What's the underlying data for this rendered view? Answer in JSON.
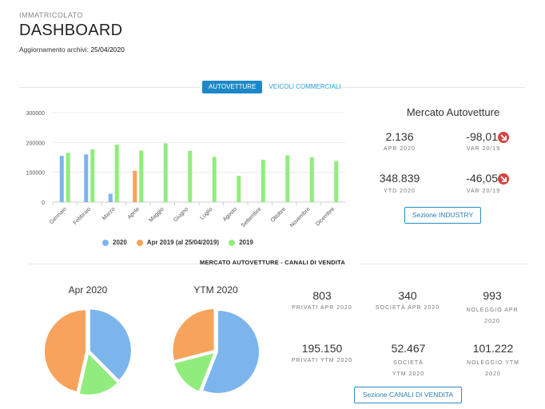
{
  "header": {
    "supertitle": "IMMATRICOLATO",
    "title": "DASHBOARD",
    "update_label": "Aggiornamento archivi:",
    "update_date": "25/04/2020"
  },
  "tabs": [
    {
      "label": "AUTOVETTURE",
      "active": true
    },
    {
      "label": "VEICOLI COMMERCIALI",
      "active": false
    }
  ],
  "chart_data": [
    {
      "type": "bar",
      "categories": [
        "Gennaio",
        "Febbraio",
        "Marzo",
        "Aprile",
        "Maggio",
        "Giugno",
        "Luglio",
        "Agosto",
        "Settembre",
        "Ottobre",
        "Novembre",
        "Dicembre"
      ],
      "series": [
        {
          "name": "2020",
          "color": "#7cb5ec",
          "values": [
            155000,
            160000,
            28000,
            null,
            null,
            null,
            null,
            null,
            null,
            null,
            null,
            null
          ]
        },
        {
          "name": "Apr 2019 (al 25/04/2019)",
          "color": "#f7a35c",
          "values": [
            null,
            null,
            null,
            105000,
            null,
            null,
            null,
            null,
            null,
            null,
            null,
            null
          ]
        },
        {
          "name": "2019",
          "color": "#90ed7d",
          "values": [
            165000,
            177000,
            193000,
            173000,
            197000,
            172000,
            152000,
            88000,
            142000,
            157000,
            150000,
            138000
          ]
        }
      ],
      "yticks": [
        "0",
        "100000",
        "200000",
        "300000"
      ],
      "ylim": [
        0,
        300000
      ],
      "grid": true,
      "legend": "bottom"
    },
    {
      "type": "pie",
      "title": "Apr 2020",
      "series": [
        {
          "name": "Privati Apr 2020",
          "value": 803,
          "color": "#7cb5ec"
        },
        {
          "name": "Società Apr 2020",
          "value": 340,
          "color": "#90ed7d"
        },
        {
          "name": "Noleggio Apr 2020",
          "value": 993,
          "color": "#f7a35c"
        }
      ]
    },
    {
      "type": "pie",
      "title": "YTM 2020",
      "series": [
        {
          "name": "Privati YTM 2020",
          "value": 195150,
          "color": "#7cb5ec"
        },
        {
          "name": "Società YTM 2020",
          "value": 52467,
          "color": "#90ed7d"
        },
        {
          "name": "Noleggio YTM 2020",
          "value": 101222,
          "color": "#f7a35c"
        }
      ]
    }
  ],
  "mercato": {
    "title": "Mercato Autovetture",
    "apr_value": "2.136",
    "apr_label": "APR 2020",
    "var_apr_value": "-98,01",
    "var_apr_label": "VAR 20/19",
    "ytd_value": "348.839",
    "ytd_label": "YTD 2020",
    "var_ytd_value": "-46,05",
    "var_ytd_label": "VAR 20/19",
    "button": "Sezione INDUSTRY",
    "arrow_color": "#d64541"
  },
  "canali": {
    "title": "MERCATO AUTOVETTURE - CANALI DI VENDITA",
    "pie1_title": "Apr 2020",
    "pie2_title": "YTM 2020",
    "stats": [
      {
        "value": "803",
        "label": "PRIVATI APR 2020"
      },
      {
        "value": "340",
        "label": "SOCIETÀ APR 2020"
      },
      {
        "value": "993",
        "label": "NOLEGGIO APR 2020"
      },
      {
        "value": "195.150",
        "label": "PRIVATI YTM 2020"
      },
      {
        "value": "52.467",
        "label": "SOCIETÀ YTM 2020"
      },
      {
        "value": "101.222",
        "label": "NOLEGGIO YTM 2020"
      }
    ],
    "button": "Sezione CANALI DI VENDITA"
  }
}
